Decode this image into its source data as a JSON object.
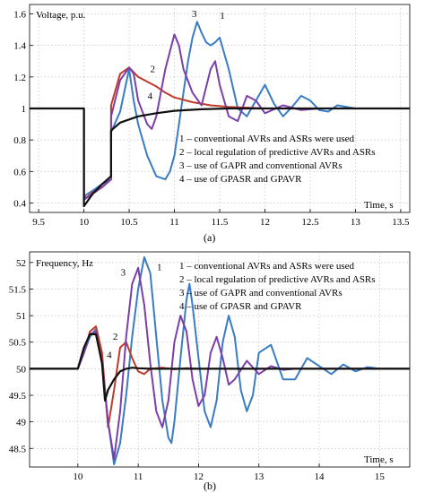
{
  "chart_data": [
    {
      "type": "line",
      "title": "",
      "ylabel": "Voltage, p.u.",
      "xlabel": "Time, s",
      "xlim": [
        9.4,
        13.6
      ],
      "ylim": [
        0.34,
        1.66
      ],
      "xticks": [
        9.5,
        10,
        10.5,
        11,
        11.5,
        12,
        12.5,
        13,
        13.5
      ],
      "yticks": [
        0.4,
        0.6,
        0.8,
        1,
        1.2,
        1.4,
        1.6
      ],
      "grid": true,
      "legend_position": "right",
      "caption": "(a)",
      "legend": [
        "1 – conventional AVRs and ASRs were used",
        "2 – local regulation of predictive AVRs and ASRs",
        "3 – use of GAPR and conventional AVRs",
        "4 – use of GPASR and GPAVR"
      ],
      "series": [
        {
          "name": "1",
          "color": "#3a7cc4",
          "x": [
            9.4,
            10.0,
            10.0,
            10.02,
            10.1,
            10.2,
            10.3,
            10.3,
            10.4,
            10.5,
            10.55,
            10.6,
            10.7,
            10.8,
            10.9,
            10.95,
            11.0,
            11.05,
            11.1,
            11.15,
            11.2,
            11.25,
            11.3,
            11.35,
            11.4,
            11.45,
            11.5,
            11.6,
            11.7,
            11.8,
            11.9,
            12.0,
            12.1,
            12.2,
            12.3,
            12.4,
            12.5,
            12.6,
            12.7,
            12.8,
            12.9,
            13.0,
            13.6
          ],
          "y": [
            1.0,
            1.0,
            0.42,
            0.45,
            0.48,
            0.52,
            0.55,
            0.85,
            0.98,
            1.25,
            1.05,
            0.9,
            0.7,
            0.57,
            0.55,
            0.6,
            0.7,
            0.9,
            1.1,
            1.3,
            1.45,
            1.55,
            1.48,
            1.42,
            1.4,
            1.42,
            1.45,
            1.25,
            1.0,
            0.95,
            1.05,
            1.15,
            1.03,
            0.95,
            1.01,
            1.08,
            1.05,
            0.99,
            0.98,
            1.02,
            1.01,
            1.0,
            1.0
          ]
        },
        {
          "name": "2",
          "color": "#c0392b",
          "x": [
            9.4,
            10.0,
            10.0,
            10.1,
            10.2,
            10.3,
            10.3,
            10.4,
            10.5,
            10.6,
            10.7,
            10.8,
            10.9,
            11.0,
            11.2,
            11.4,
            11.6,
            11.8,
            12.0,
            13.6
          ],
          "y": [
            1.0,
            1.0,
            0.42,
            0.47,
            0.5,
            0.55,
            1.02,
            1.22,
            1.26,
            1.2,
            1.17,
            1.14,
            1.1,
            1.07,
            1.04,
            1.02,
            1.01,
            1.005,
            1.0,
            1.0
          ]
        },
        {
          "name": "3",
          "color": "#7b3fa8",
          "x": [
            9.4,
            10.0,
            10.0,
            10.1,
            10.2,
            10.3,
            10.3,
            10.4,
            10.5,
            10.55,
            10.6,
            10.7,
            10.75,
            10.8,
            10.9,
            11.0,
            11.05,
            11.1,
            11.2,
            11.3,
            11.4,
            11.45,
            11.5,
            11.6,
            11.7,
            11.8,
            11.9,
            12.0,
            12.2,
            12.4,
            12.6,
            13.6
          ],
          "y": [
            1.0,
            1.0,
            0.42,
            0.46,
            0.5,
            0.55,
            0.95,
            1.18,
            1.26,
            1.22,
            1.05,
            0.9,
            0.87,
            0.95,
            1.25,
            1.47,
            1.4,
            1.25,
            1.1,
            1.02,
            1.25,
            1.3,
            1.15,
            0.95,
            0.92,
            1.08,
            1.05,
            0.97,
            1.02,
            0.99,
            1.0,
            1.0
          ]
        },
        {
          "name": "4",
          "color": "#111111",
          "x": [
            9.4,
            10.0,
            10.0,
            10.1,
            10.2,
            10.3,
            10.3,
            10.4,
            10.5,
            10.6,
            10.8,
            11.0,
            11.3,
            11.6,
            12.0,
            13.6
          ],
          "y": [
            1.0,
            1.0,
            0.38,
            0.46,
            0.52,
            0.57,
            0.86,
            0.91,
            0.93,
            0.95,
            0.97,
            0.985,
            0.995,
            1.0,
            1.0,
            1.0
          ]
        }
      ],
      "curve_labels": [
        {
          "text": "1",
          "x": 11.53,
          "y": 1.57
        },
        {
          "text": "2",
          "x": 10.76,
          "y": 1.23
        },
        {
          "text": "3",
          "x": 11.22,
          "y": 1.58
        },
        {
          "text": "4",
          "x": 10.73,
          "y": 1.06
        }
      ]
    },
    {
      "type": "line",
      "title": "",
      "ylabel": "Frequency, Hz",
      "xlabel": "Time, s",
      "xlim": [
        9.2,
        15.5
      ],
      "ylim": [
        48.15,
        52.2
      ],
      "xticks": [
        10,
        11,
        12,
        13,
        14,
        15
      ],
      "yticks": [
        48.5,
        49,
        49.5,
        50,
        50.5,
        51,
        51.5,
        52
      ],
      "grid": true,
      "legend_position": "right",
      "caption": "(b)",
      "legend": [
        "1 – conventional AVRs and ASRs were used",
        "2 – local regulation of predictive AVRs and ASRs",
        "3 – use of GAPR and conventional AVRs",
        "4 – use of GPASR and GPAVR"
      ],
      "series": [
        {
          "name": "1",
          "color": "#3a7cc4",
          "x": [
            9.2,
            10.0,
            10.1,
            10.2,
            10.3,
            10.4,
            10.5,
            10.6,
            10.7,
            10.8,
            10.9,
            11.0,
            11.1,
            11.2,
            11.25,
            11.3,
            11.4,
            11.5,
            11.55,
            11.6,
            11.7,
            11.8,
            11.85,
            11.9,
            12.0,
            12.1,
            12.2,
            12.3,
            12.4,
            12.5,
            12.6,
            12.7,
            12.8,
            12.9,
            13.0,
            13.2,
            13.4,
            13.6,
            13.8,
            14.0,
            14.2,
            14.4,
            14.6,
            14.8,
            15.0,
            15.5
          ],
          "y": [
            50.0,
            50.0,
            50.3,
            50.6,
            50.75,
            50.2,
            49.0,
            48.2,
            48.6,
            49.5,
            50.6,
            51.5,
            52.1,
            51.8,
            51.2,
            50.6,
            49.4,
            48.7,
            48.6,
            49.0,
            50.2,
            51.3,
            51.6,
            51.2,
            50.2,
            49.2,
            48.9,
            49.4,
            50.5,
            51.0,
            50.6,
            49.6,
            49.2,
            49.5,
            50.3,
            50.45,
            49.8,
            49.8,
            50.2,
            50.05,
            49.9,
            50.08,
            49.95,
            50.03,
            50.0,
            50.0
          ]
        },
        {
          "name": "2",
          "color": "#c0392b",
          "x": [
            9.2,
            10.0,
            10.1,
            10.2,
            10.3,
            10.4,
            10.5,
            10.6,
            10.7,
            10.8,
            10.9,
            11.0,
            11.1,
            11.2,
            11.4,
            11.6,
            11.8,
            12.0,
            15.5
          ],
          "y": [
            50.0,
            50.0,
            50.3,
            50.7,
            50.8,
            50.3,
            48.9,
            49.6,
            50.4,
            50.5,
            50.2,
            49.95,
            49.9,
            50.0,
            50.02,
            49.99,
            50.01,
            50.0,
            50.0
          ]
        },
        {
          "name": "3",
          "color": "#7b3fa8",
          "x": [
            9.2,
            10.0,
            10.1,
            10.2,
            10.3,
            10.4,
            10.5,
            10.6,
            10.7,
            10.8,
            10.9,
            11.0,
            11.1,
            11.2,
            11.3,
            11.4,
            11.5,
            11.6,
            11.7,
            11.8,
            11.9,
            12.0,
            12.1,
            12.2,
            12.3,
            12.4,
            12.5,
            12.6,
            12.8,
            13.0,
            13.2,
            13.4,
            13.6,
            14.0,
            15.5
          ],
          "y": [
            50.0,
            50.0,
            50.3,
            50.65,
            50.7,
            50.1,
            49.0,
            48.3,
            49.2,
            50.6,
            51.6,
            51.9,
            51.2,
            50.1,
            49.2,
            48.9,
            49.4,
            50.5,
            51.0,
            50.7,
            49.8,
            49.3,
            49.5,
            50.3,
            50.6,
            50.2,
            49.7,
            49.8,
            50.15,
            49.9,
            50.05,
            49.98,
            50.0,
            50.0,
            50.0
          ]
        },
        {
          "name": "4",
          "color": "#111111",
          "x": [
            9.2,
            10.0,
            10.1,
            10.2,
            10.3,
            10.4,
            10.45,
            10.5,
            10.6,
            10.7,
            10.8,
            10.9,
            11.0,
            11.2,
            11.5,
            12.0,
            15.5
          ],
          "y": [
            50.0,
            50.0,
            50.4,
            50.65,
            50.65,
            50.1,
            49.4,
            49.6,
            49.8,
            49.95,
            50.0,
            50.02,
            50.01,
            50.0,
            50.0,
            50.0,
            50.0
          ]
        }
      ],
      "curve_labels": [
        {
          "text": "1",
          "x": 11.35,
          "y": 51.85
        },
        {
          "text": "2",
          "x": 10.62,
          "y": 50.55
        },
        {
          "text": "3",
          "x": 10.75,
          "y": 51.75
        },
        {
          "text": "4",
          "x": 10.52,
          "y": 50.2
        }
      ]
    }
  ]
}
